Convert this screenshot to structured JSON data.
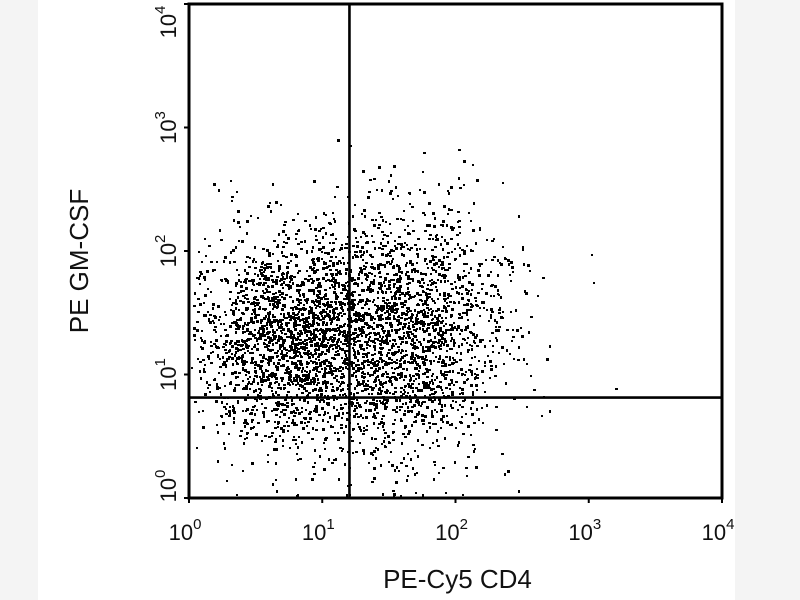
{
  "chart_data": {
    "type": "scatter",
    "title": "",
    "xlabel": "PE-Cy5 CD4",
    "ylabel": "PE GM-CSF",
    "x_scale": "log",
    "y_scale": "log",
    "xlim": [
      1,
      10000
    ],
    "ylim": [
      1,
      10000
    ],
    "x_ticks": [
      {
        "base": "10",
        "exp": "0",
        "value": 1
      },
      {
        "base": "10",
        "exp": "1",
        "value": 10
      },
      {
        "base": "10",
        "exp": "2",
        "value": 100
      },
      {
        "base": "10",
        "exp": "3",
        "value": 1000
      },
      {
        "base": "10",
        "exp": "4",
        "value": 10000
      }
    ],
    "y_ticks": [
      {
        "base": "10",
        "exp": "0",
        "value": 1
      },
      {
        "base": "10",
        "exp": "1",
        "value": 10
      },
      {
        "base": "10",
        "exp": "2",
        "value": 100
      },
      {
        "base": "10",
        "exp": "3",
        "value": 1000
      },
      {
        "base": "10",
        "exp": "4",
        "value": 10000
      }
    ],
    "quadrant_gate": {
      "x": 16,
      "y": 6.5
    },
    "grid": false,
    "point_color": "#000000",
    "populations": [
      {
        "x_center": 6.0,
        "y_center": 20,
        "x_spread_decades": 0.38,
        "y_spread_decades": 0.42,
        "count": 2600
      },
      {
        "x_center": 45,
        "y_center": 22,
        "x_spread_decades": 0.36,
        "y_spread_decades": 0.5,
        "count": 1900
      }
    ]
  }
}
